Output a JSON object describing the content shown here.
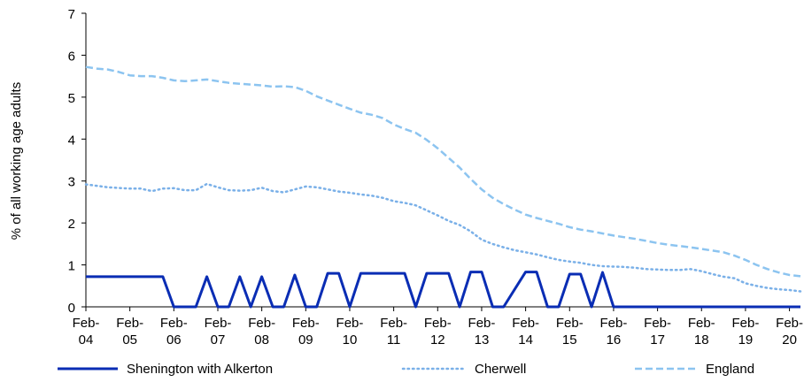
{
  "chart_data": {
    "type": "line",
    "ylabel": "% of all working age adults",
    "ylim": [
      0,
      7
    ],
    "yticks": [
      0,
      1,
      2,
      3,
      4,
      5,
      6,
      7
    ],
    "grid": false,
    "legend_position": "bottom",
    "xlim": [
      "2004-02",
      "2020-05"
    ],
    "xticks": [
      {
        "x": "2004-02",
        "label": [
          "Feb-",
          "04"
        ]
      },
      {
        "x": "2005-02",
        "label": [
          "Feb-",
          "05"
        ]
      },
      {
        "x": "2006-02",
        "label": [
          "Feb-",
          "06"
        ]
      },
      {
        "x": "2007-02",
        "label": [
          "Feb-",
          "07"
        ]
      },
      {
        "x": "2008-02",
        "label": [
          "Feb-",
          "08"
        ]
      },
      {
        "x": "2009-02",
        "label": [
          "Feb-",
          "09"
        ]
      },
      {
        "x": "2010-02",
        "label": [
          "Feb-",
          "10"
        ]
      },
      {
        "x": "2011-02",
        "label": [
          "Feb-",
          "11"
        ]
      },
      {
        "x": "2012-02",
        "label": [
          "Feb-",
          "12"
        ]
      },
      {
        "x": "2013-02",
        "label": [
          "Feb-",
          "13"
        ]
      },
      {
        "x": "2014-02",
        "label": [
          "Feb-",
          "14"
        ]
      },
      {
        "x": "2015-02",
        "label": [
          "Feb-",
          "15"
        ]
      },
      {
        "x": "2016-02",
        "label": [
          "Feb-",
          "16"
        ]
      },
      {
        "x": "2017-02",
        "label": [
          "Feb-",
          "17"
        ]
      },
      {
        "x": "2018-02",
        "label": [
          "Feb-",
          "18"
        ]
      },
      {
        "x": "2019-02",
        "label": [
          "Feb-",
          "19"
        ]
      },
      {
        "x": "2020-02",
        "label": [
          "Feb-",
          "20"
        ]
      }
    ],
    "series": [
      {
        "name": "Shenington with Alkerton",
        "color": "#0a2db4",
        "style": "solid",
        "points": [
          [
            "2004-02",
            0.72
          ],
          [
            "2005-11",
            0.72
          ],
          [
            "2006-02",
            0
          ],
          [
            "2006-08",
            0
          ],
          [
            "2006-11",
            0.72
          ],
          [
            "2007-02",
            0
          ],
          [
            "2007-05",
            0
          ],
          [
            "2007-08",
            0.72
          ],
          [
            "2007-11",
            0
          ],
          [
            "2008-02",
            0.72
          ],
          [
            "2008-05",
            0
          ],
          [
            "2008-08",
            0
          ],
          [
            "2008-11",
            0.76
          ],
          [
            "2009-02",
            0
          ],
          [
            "2009-05",
            0
          ],
          [
            "2009-08",
            0.8
          ],
          [
            "2009-11",
            0.8
          ],
          [
            "2010-02",
            0
          ],
          [
            "2010-05",
            0.8
          ],
          [
            "2011-05",
            0.8
          ],
          [
            "2011-08",
            0
          ],
          [
            "2011-11",
            0.8
          ],
          [
            "2012-05",
            0.8
          ],
          [
            "2012-08",
            0
          ],
          [
            "2012-11",
            0.83
          ],
          [
            "2013-02",
            0.83
          ],
          [
            "2013-05",
            0
          ],
          [
            "2013-08",
            0
          ],
          [
            "2014-02",
            0.83
          ],
          [
            "2014-05",
            0.83
          ],
          [
            "2014-08",
            0
          ],
          [
            "2014-11",
            0
          ],
          [
            "2015-02",
            0.78
          ],
          [
            "2015-05",
            0.78
          ],
          [
            "2015-08",
            0
          ],
          [
            "2015-11",
            0.82
          ],
          [
            "2016-02",
            0
          ],
          [
            "2020-05",
            0
          ]
        ]
      },
      {
        "name": "Cherwell",
        "color": "#7ab0e8",
        "style": "dotted",
        "points": [
          [
            "2004-02",
            2.92
          ],
          [
            "2004-08",
            2.85
          ],
          [
            "2005-02",
            2.82
          ],
          [
            "2005-05",
            2.82
          ],
          [
            "2005-08",
            2.76
          ],
          [
            "2005-11",
            2.82
          ],
          [
            "2006-02",
            2.83
          ],
          [
            "2006-05",
            2.78
          ],
          [
            "2006-08",
            2.78
          ],
          [
            "2006-11",
            2.93
          ],
          [
            "2007-02",
            2.85
          ],
          [
            "2007-05",
            2.78
          ],
          [
            "2007-08",
            2.77
          ],
          [
            "2007-11",
            2.78
          ],
          [
            "2008-02",
            2.84
          ],
          [
            "2008-05",
            2.76
          ],
          [
            "2008-08",
            2.73
          ],
          [
            "2008-11",
            2.8
          ],
          [
            "2009-02",
            2.87
          ],
          [
            "2009-05",
            2.85
          ],
          [
            "2009-08",
            2.8
          ],
          [
            "2009-11",
            2.75
          ],
          [
            "2010-02",
            2.72
          ],
          [
            "2010-05",
            2.68
          ],
          [
            "2010-08",
            2.65
          ],
          [
            "2010-11",
            2.6
          ],
          [
            "2011-02",
            2.52
          ],
          [
            "2011-05",
            2.48
          ],
          [
            "2011-08",
            2.42
          ],
          [
            "2011-11",
            2.3
          ],
          [
            "2012-02",
            2.18
          ],
          [
            "2012-05",
            2.05
          ],
          [
            "2012-08",
            1.95
          ],
          [
            "2012-11",
            1.8
          ],
          [
            "2013-02",
            1.6
          ],
          [
            "2013-05",
            1.5
          ],
          [
            "2013-08",
            1.42
          ],
          [
            "2013-11",
            1.35
          ],
          [
            "2014-02",
            1.3
          ],
          [
            "2014-05",
            1.25
          ],
          [
            "2014-08",
            1.18
          ],
          [
            "2014-11",
            1.12
          ],
          [
            "2015-02",
            1.08
          ],
          [
            "2015-05",
            1.05
          ],
          [
            "2015-08",
            1.0
          ],
          [
            "2015-11",
            0.97
          ],
          [
            "2016-02",
            0.96
          ],
          [
            "2016-05",
            0.95
          ],
          [
            "2016-08",
            0.93
          ],
          [
            "2016-11",
            0.9
          ],
          [
            "2017-02",
            0.89
          ],
          [
            "2017-05",
            0.88
          ],
          [
            "2017-08",
            0.88
          ],
          [
            "2017-11",
            0.9
          ],
          [
            "2018-02",
            0.85
          ],
          [
            "2018-05",
            0.78
          ],
          [
            "2018-08",
            0.72
          ],
          [
            "2018-11",
            0.68
          ],
          [
            "2019-02",
            0.56
          ],
          [
            "2019-05",
            0.5
          ],
          [
            "2019-08",
            0.45
          ],
          [
            "2019-11",
            0.42
          ],
          [
            "2020-02",
            0.4
          ],
          [
            "2020-05",
            0.37
          ]
        ]
      },
      {
        "name": "England",
        "color": "#8cc4f0",
        "style": "dashed",
        "points": [
          [
            "2004-02",
            5.72
          ],
          [
            "2004-05",
            5.68
          ],
          [
            "2004-08",
            5.66
          ],
          [
            "2004-11",
            5.6
          ],
          [
            "2005-02",
            5.52
          ],
          [
            "2005-05",
            5.5
          ],
          [
            "2005-08",
            5.5
          ],
          [
            "2005-11",
            5.46
          ],
          [
            "2006-02",
            5.4
          ],
          [
            "2006-05",
            5.38
          ],
          [
            "2006-08",
            5.4
          ],
          [
            "2006-11",
            5.42
          ],
          [
            "2007-02",
            5.38
          ],
          [
            "2007-05",
            5.34
          ],
          [
            "2007-08",
            5.32
          ],
          [
            "2007-11",
            5.3
          ],
          [
            "2008-02",
            5.28
          ],
          [
            "2008-05",
            5.25
          ],
          [
            "2008-08",
            5.26
          ],
          [
            "2008-11",
            5.24
          ],
          [
            "2009-02",
            5.15
          ],
          [
            "2009-05",
            5.02
          ],
          [
            "2009-08",
            4.92
          ],
          [
            "2009-11",
            4.82
          ],
          [
            "2010-02",
            4.72
          ],
          [
            "2010-05",
            4.63
          ],
          [
            "2010-08",
            4.58
          ],
          [
            "2010-11",
            4.5
          ],
          [
            "2011-02",
            4.35
          ],
          [
            "2011-05",
            4.24
          ],
          [
            "2011-08",
            4.15
          ],
          [
            "2011-11",
            3.98
          ],
          [
            "2012-02",
            3.78
          ],
          [
            "2012-05",
            3.55
          ],
          [
            "2012-08",
            3.32
          ],
          [
            "2012-11",
            3.05
          ],
          [
            "2013-02",
            2.8
          ],
          [
            "2013-05",
            2.6
          ],
          [
            "2013-08",
            2.45
          ],
          [
            "2013-11",
            2.32
          ],
          [
            "2014-02",
            2.2
          ],
          [
            "2014-05",
            2.12
          ],
          [
            "2014-08",
            2.05
          ],
          [
            "2014-11",
            1.98
          ],
          [
            "2015-02",
            1.9
          ],
          [
            "2015-05",
            1.84
          ],
          [
            "2015-08",
            1.8
          ],
          [
            "2015-11",
            1.75
          ],
          [
            "2016-02",
            1.7
          ],
          [
            "2016-05",
            1.66
          ],
          [
            "2016-08",
            1.62
          ],
          [
            "2016-11",
            1.57
          ],
          [
            "2017-02",
            1.52
          ],
          [
            "2017-05",
            1.48
          ],
          [
            "2017-08",
            1.45
          ],
          [
            "2017-11",
            1.42
          ],
          [
            "2018-02",
            1.38
          ],
          [
            "2018-05",
            1.34
          ],
          [
            "2018-08",
            1.3
          ],
          [
            "2018-11",
            1.22
          ],
          [
            "2019-02",
            1.12
          ],
          [
            "2019-05",
            1.0
          ],
          [
            "2019-08",
            0.9
          ],
          [
            "2019-11",
            0.82
          ],
          [
            "2020-02",
            0.76
          ],
          [
            "2020-05",
            0.73
          ]
        ]
      }
    ]
  }
}
